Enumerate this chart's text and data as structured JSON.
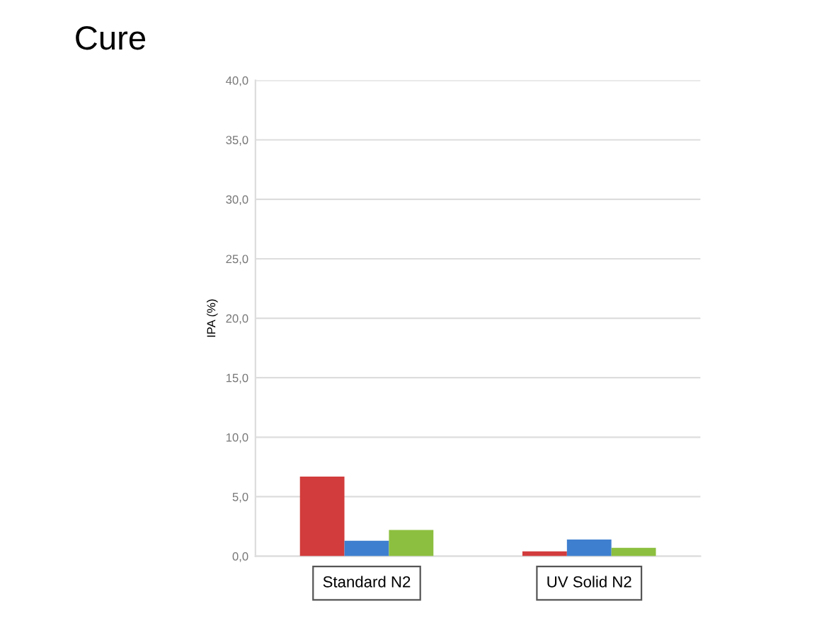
{
  "chart_data": {
    "type": "bar",
    "title": "Cure",
    "ylabel": "IPA (%)",
    "categories": [
      "Standard N2",
      "UV Solid N2"
    ],
    "series": [
      {
        "color": "#d23c3c",
        "values": [
          6.7,
          0.4
        ]
      },
      {
        "color": "#3f7fcf",
        "values": [
          1.3,
          1.4
        ]
      },
      {
        "color": "#8cbf3f",
        "values": [
          2.2,
          0.7
        ]
      }
    ],
    "ylim": [
      0,
      40
    ],
    "yticks": [
      {
        "value": 0,
        "label": "0,0"
      },
      {
        "value": 5,
        "label": "5,0"
      },
      {
        "value": 10,
        "label": "10,0"
      },
      {
        "value": 15,
        "label": "15,0"
      },
      {
        "value": 20,
        "label": "20,0"
      },
      {
        "value": 25,
        "label": "25,0"
      },
      {
        "value": 30,
        "label": "30,0"
      },
      {
        "value": 35,
        "label": "35,0"
      },
      {
        "value": 40,
        "label": "40,0"
      }
    ],
    "grid": "y",
    "legend": false
  }
}
